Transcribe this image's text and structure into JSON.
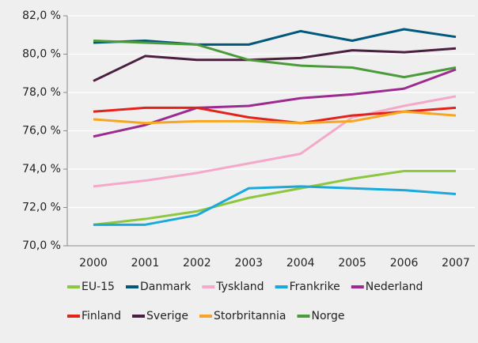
{
  "chart_data": {
    "type": "line",
    "categories": [
      "2000",
      "2001",
      "2002",
      "2003",
      "2004",
      "2005",
      "2006",
      "2007"
    ],
    "ylim": [
      70,
      82
    ],
    "yticks": [
      {
        "value": 70,
        "label": "70,0 %"
      },
      {
        "value": 72,
        "label": "72,0 %"
      },
      {
        "value": 74,
        "label": "74,0 %"
      },
      {
        "value": 76,
        "label": "76,0 %"
      },
      {
        "value": 78,
        "label": "78,0 %"
      },
      {
        "value": 80,
        "label": "80,0 %"
      },
      {
        "value": 82,
        "label": "82,0 %"
      }
    ],
    "grid": true,
    "series": [
      {
        "name": "EU-15",
        "color": "#8dc63f",
        "values": [
          71.1,
          71.4,
          71.8,
          72.5,
          73.0,
          73.5,
          73.9,
          73.9
        ]
      },
      {
        "name": "Danmark",
        "color": "#00587c",
        "values": [
          80.6,
          80.7,
          80.5,
          80.5,
          81.2,
          80.7,
          81.3,
          80.9
        ]
      },
      {
        "name": "Tyskland",
        "color": "#f5a8c9",
        "values": [
          73.1,
          73.4,
          73.8,
          74.3,
          74.8,
          76.7,
          77.3,
          77.8
        ]
      },
      {
        "name": "Frankrike",
        "color": "#19a9dc",
        "values": [
          71.1,
          71.1,
          71.6,
          73.0,
          73.1,
          73.0,
          72.9,
          72.7
        ]
      },
      {
        "name": "Nederland",
        "color": "#9c2a90",
        "values": [
          75.7,
          76.3,
          77.2,
          77.3,
          77.7,
          77.9,
          78.2,
          79.2
        ]
      },
      {
        "name": "Finland",
        "color": "#e3231b",
        "values": [
          77.0,
          77.2,
          77.2,
          76.7,
          76.4,
          76.8,
          77.0,
          77.2
        ]
      },
      {
        "name": "Sverige",
        "color": "#4a1f40",
        "values": [
          78.6,
          79.9,
          79.7,
          79.7,
          79.8,
          80.2,
          80.1,
          80.3
        ]
      },
      {
        "name": "Storbritannia",
        "color": "#f6a623",
        "values": [
          76.6,
          76.4,
          76.5,
          76.5,
          76.4,
          76.5,
          77.0,
          76.8
        ]
      },
      {
        "name": "Norge",
        "color": "#4b9b3b",
        "values": [
          80.7,
          80.6,
          80.5,
          79.7,
          79.4,
          79.3,
          78.8,
          79.3
        ]
      }
    ]
  }
}
